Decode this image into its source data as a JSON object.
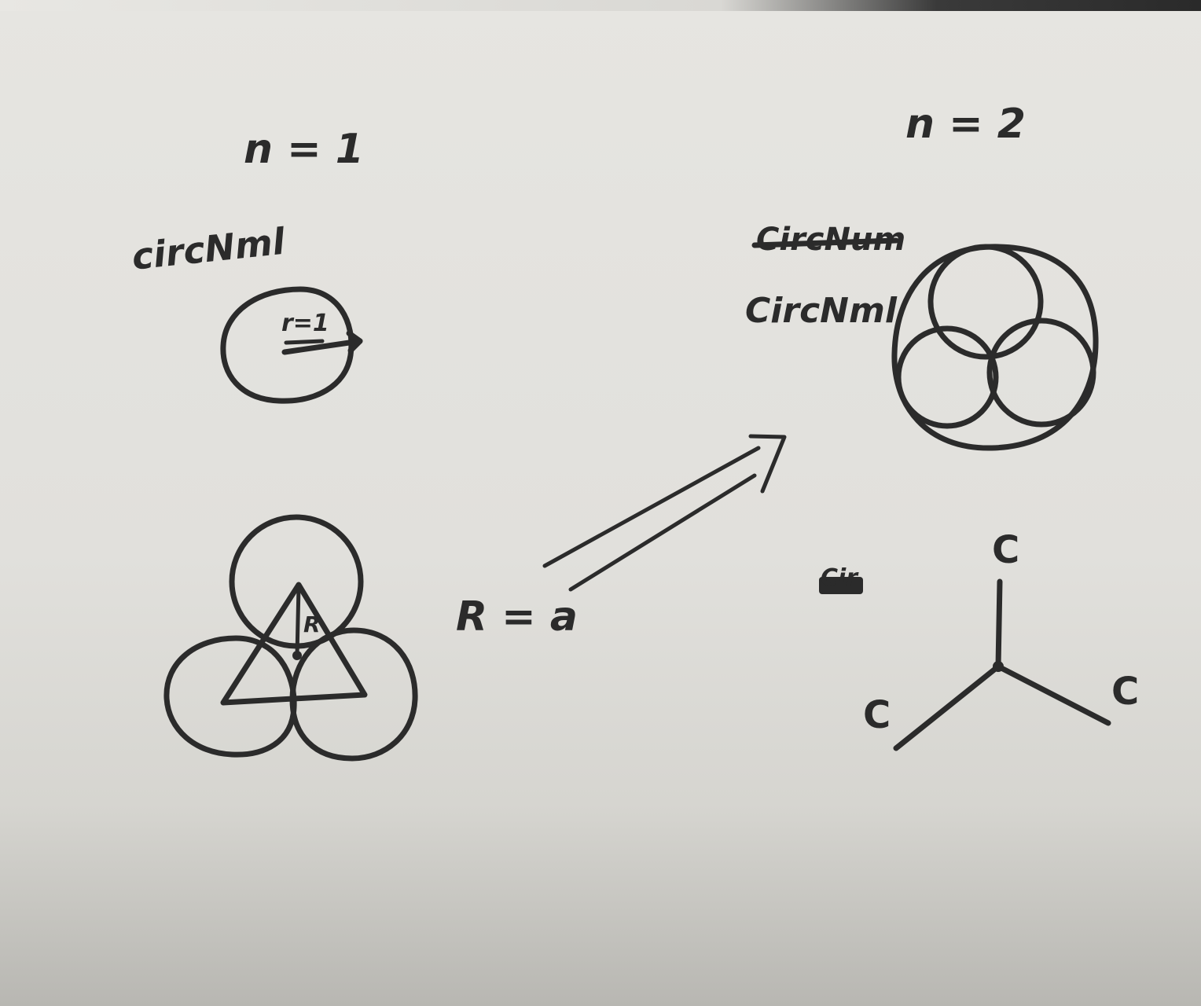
{
  "left_panel": {
    "heading": "n = 1",
    "label": "circNml",
    "radius_label": "r=1",
    "triangle_label": "R"
  },
  "center": {
    "relation_label": "R = a"
  },
  "right_panel": {
    "heading": "n = 2",
    "struck_label": "CircNum",
    "label": "CircNml",
    "struck_small": "Cir",
    "node_labels": [
      "C",
      "C",
      "C"
    ]
  }
}
